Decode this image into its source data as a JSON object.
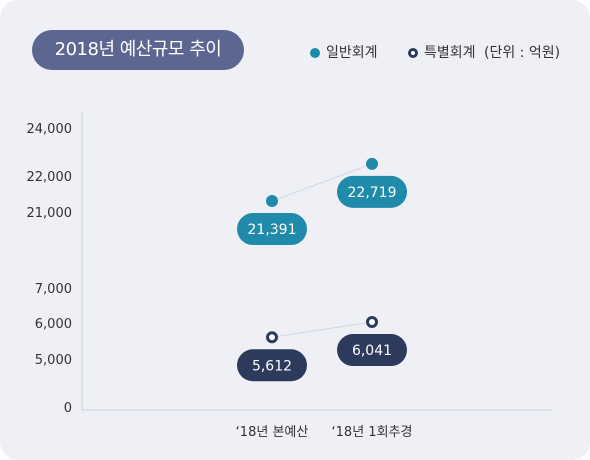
{
  "title": "2018년 예산규모 추이",
  "legend": {
    "general": "일반회계",
    "special": "특별회계",
    "unit": "(단위 : 억원)"
  },
  "colors": {
    "title_bg": "#5b6790",
    "general": "#1f8aaa",
    "special": "#2c3a5c",
    "connector": "#d3d6e0"
  },
  "chart_data": {
    "type": "scatter",
    "title": "2018년 예산규모 추이",
    "unit": "(단위 : 억원)",
    "categories": [
      "‘18년 본예산",
      "‘18년 1회추경"
    ],
    "y_ticks": [
      "24,000",
      "22,000",
      "21,000",
      "7,000",
      "6,000",
      "5,000",
      "0"
    ],
    "axis_break": true,
    "series": [
      {
        "name": "일반회계",
        "values": [
          21391,
          22719
        ],
        "labels": [
          "21,391",
          "22,719"
        ]
      },
      {
        "name": "특별회계",
        "values": [
          5612,
          6041
        ],
        "labels": [
          "5,612",
          "6,041"
        ]
      }
    ]
  }
}
